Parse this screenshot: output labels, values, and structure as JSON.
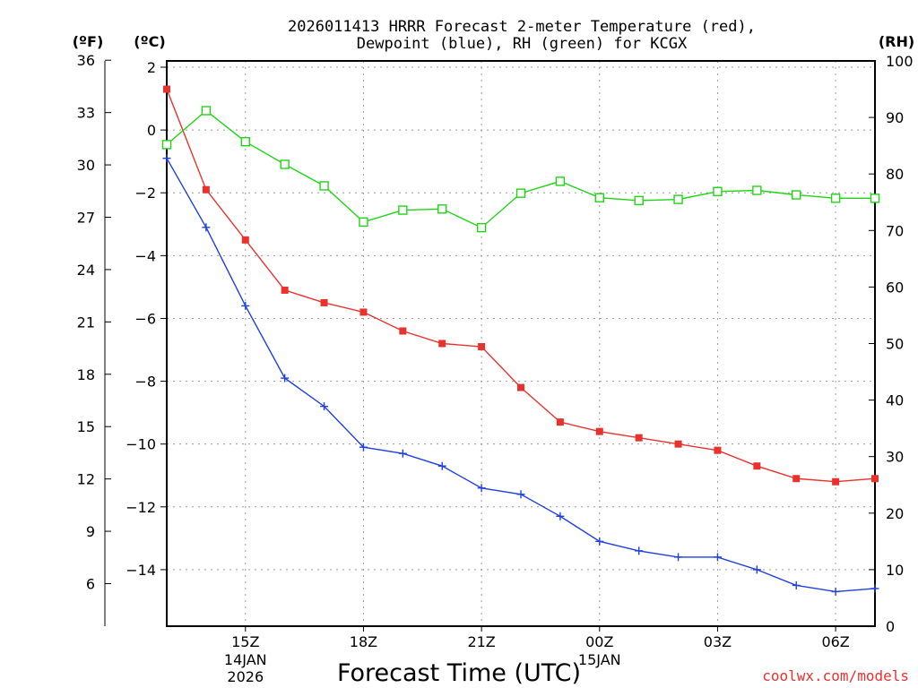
{
  "chart_data": {
    "type": "line",
    "title_line1": "2026011413 HRRR Forecast 2-meter Temperature (red),",
    "title_line2": "Dewpoint (blue), RH (green) for KCGX",
    "xlabel": "Forecast Time (UTC)",
    "credit": "coolwx.com/models",
    "unit_left_f": "(ºF)",
    "unit_left_c": "(ºC)",
    "unit_right": "(RH)",
    "x_hours": [
      13,
      14,
      15,
      16,
      17,
      18,
      19,
      20,
      21,
      22,
      23,
      24,
      25,
      26,
      27,
      28,
      29,
      30,
      31
    ],
    "xlim": [
      13,
      31
    ],
    "x_ticks": [
      {
        "hour": 15,
        "label": "15Z",
        "sub1": "14JAN",
        "sub2": "2026"
      },
      {
        "hour": 18,
        "label": "18Z",
        "sub1": "",
        "sub2": ""
      },
      {
        "hour": 21,
        "label": "21Z",
        "sub1": "",
        "sub2": ""
      },
      {
        "hour": 24,
        "label": "00Z",
        "sub1": "15JAN",
        "sub2": ""
      },
      {
        "hour": 27,
        "label": "03Z",
        "sub1": "",
        "sub2": ""
      },
      {
        "hour": 30,
        "label": "06Z",
        "sub1": "",
        "sub2": ""
      }
    ],
    "ylim_c": [
      -15.8,
      2.2
    ],
    "y_ticks_c": [
      "2",
      "0",
      "−2",
      "−4",
      "−6",
      "−8",
      "−10",
      "−12",
      "−14"
    ],
    "y_ticks_c_values": [
      2,
      0,
      -2,
      -4,
      -6,
      -8,
      -10,
      -12,
      -14
    ],
    "y_ticks_f": [
      "36",
      "33",
      "30",
      "27",
      "24",
      "21",
      "18",
      "15",
      "12",
      "9",
      "6"
    ],
    "y_ticks_f_values": [
      36,
      33,
      30,
      27,
      24,
      21,
      18,
      15,
      12,
      9,
      6
    ],
    "ylim_rh": [
      0,
      100
    ],
    "y_ticks_rh": [
      "100",
      "90",
      "80",
      "70",
      "60",
      "50",
      "40",
      "30",
      "20",
      "10",
      "0"
    ],
    "y_ticks_rh_values": [
      100,
      90,
      80,
      70,
      60,
      50,
      40,
      30,
      20,
      10,
      0
    ],
    "series": [
      {
        "name": "Temperature",
        "unit": "C",
        "color": "#e8322e",
        "marker": "filled-square",
        "values": [
          1.3,
          -1.9,
          -3.5,
          -5.1,
          -5.5,
          -5.8,
          -6.4,
          -6.8,
          -6.9,
          -8.2,
          -9.3,
          -9.6,
          -9.8,
          -10.0,
          -10.2,
          -10.7,
          -11.1,
          -11.2,
          -11.1
        ]
      },
      {
        "name": "Dewpoint",
        "unit": "C",
        "color": "#1f3fe0",
        "marker": "plus",
        "values": [
          -0.9,
          -3.1,
          -5.6,
          -7.9,
          -8.8,
          -10.1,
          -10.3,
          -10.7,
          -11.4,
          -11.6,
          -12.3,
          -13.1,
          -13.4,
          -13.6,
          -13.6,
          -14.0,
          -14.5,
          -14.7,
          -14.6
        ]
      },
      {
        "name": "RH",
        "unit": "%",
        "color": "#22d416",
        "marker": "open-square",
        "values": [
          85.2,
          91.2,
          85.7,
          81.7,
          77.9,
          71.5,
          73.6,
          73.8,
          70.5,
          76.6,
          78.7,
          75.8,
          75.3,
          75.5,
          76.9,
          77.1,
          76.3,
          75.7,
          75.7
        ]
      }
    ]
  }
}
